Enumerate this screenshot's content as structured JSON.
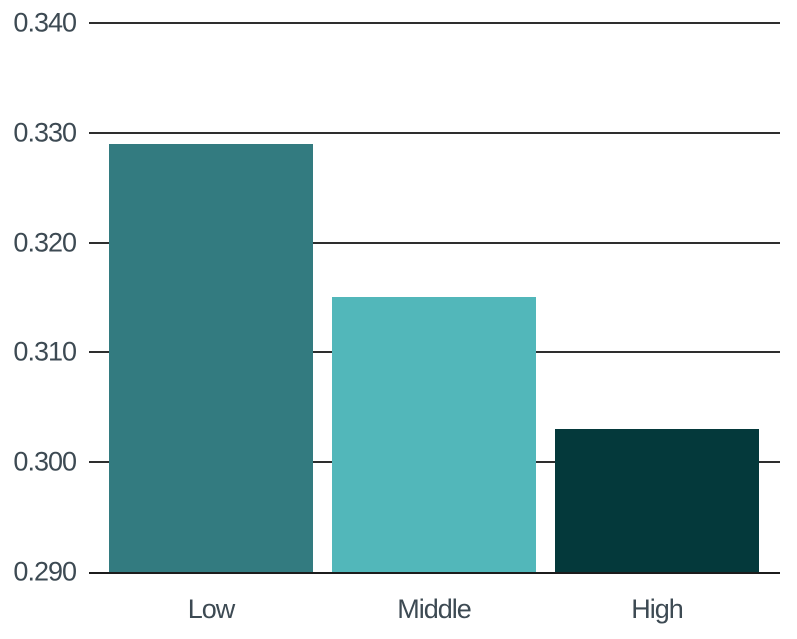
{
  "chart_data": {
    "type": "bar",
    "categories": [
      "Low",
      "Middle",
      "High"
    ],
    "values": [
      0.329,
      0.315,
      0.303
    ],
    "bar_colors": [
      "#337b80",
      "#52b7ba",
      "#04393b"
    ],
    "title": "",
    "xlabel": "",
    "ylabel": "",
    "ylim": [
      0.29,
      0.34
    ],
    "yticks": [
      0.29,
      0.3,
      0.31,
      0.32,
      0.33,
      0.34
    ],
    "ytick_labels": [
      "0.290",
      "0.300",
      "0.310",
      "0.320",
      "0.330",
      "0.340"
    ],
    "grid": true,
    "grid_behind_bars": true,
    "legend": false
  },
  "colors": {
    "background": "#ffffff",
    "grid_line": "#2e2e2e",
    "axis_line": "#1c1c1c",
    "tick_text": "#3d4a53"
  }
}
